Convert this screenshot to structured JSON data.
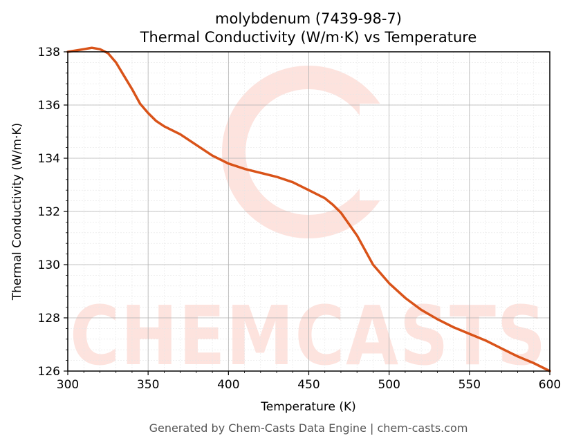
{
  "chart_data": {
    "type": "line",
    "title_line1": "molybdenum (7439-98-7)",
    "title_line2": "Thermal Conductivity (W/m·K) vs Temperature",
    "xlabel": "Temperature (K)",
    "ylabel": "Thermal Conductivity (W/m·K)",
    "xlim": [
      300,
      600
    ],
    "ylim": [
      126,
      138
    ],
    "xticks": [
      300,
      350,
      400,
      450,
      500,
      550,
      600
    ],
    "yticks": [
      126,
      128,
      130,
      132,
      134,
      136,
      138
    ],
    "grid": true,
    "series": [
      {
        "color": "#d95319",
        "x": [
          300,
          305,
          310,
          315,
          320,
          325,
          330,
          335,
          340,
          345,
          350,
          355,
          360,
          370,
          380,
          390,
          400,
          410,
          420,
          430,
          440,
          450,
          460,
          465,
          470,
          480,
          490,
          500,
          510,
          520,
          530,
          540,
          550,
          560,
          570,
          580,
          590,
          600
        ],
        "y": [
          138.0,
          138.05,
          138.1,
          138.15,
          138.1,
          137.95,
          137.6,
          137.1,
          136.6,
          136.05,
          135.7,
          135.4,
          135.2,
          134.9,
          134.5,
          134.1,
          133.8,
          133.6,
          133.45,
          133.3,
          133.1,
          132.8,
          132.5,
          132.25,
          131.95,
          131.1,
          130.0,
          129.3,
          128.75,
          128.3,
          127.95,
          127.65,
          127.4,
          127.15,
          126.85,
          126.55,
          126.3,
          126.0
        ]
      }
    ]
  },
  "watermark": {
    "text": "CHEMCASTS",
    "color": "#fde3de"
  },
  "footer": "Generated by Chem-Casts Data Engine | chem-casts.com"
}
